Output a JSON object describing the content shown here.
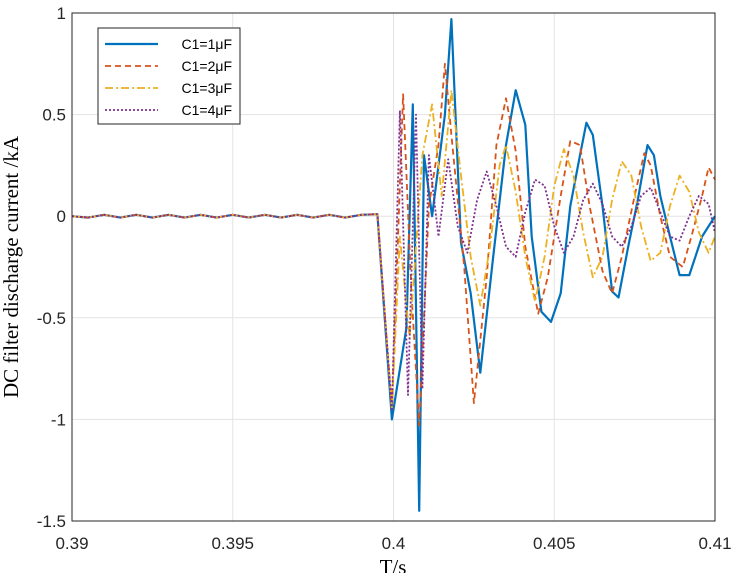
{
  "chart_data": {
    "type": "line",
    "xlabel": "T/s",
    "ylabel": "DC filter discharge current /kA",
    "xlim": [
      0.39,
      0.41
    ],
    "ylim": [
      -1.5,
      1
    ],
    "xticks": [
      "0.39",
      "0.395",
      "0.4",
      "0.405",
      "0.41"
    ],
    "xtick_values": [
      0.39,
      0.395,
      0.4,
      0.405,
      0.41
    ],
    "yticks": [
      "1",
      "0.5",
      "0",
      "-0.5",
      "-1",
      "-1.5"
    ],
    "ytick_values": [
      1,
      0.5,
      0,
      -0.5,
      -1,
      -1.5
    ],
    "grid": true,
    "legend_position": "top-left",
    "series": [
      {
        "name": "C1=1μF",
        "color": "#0072BD",
        "dash": "solid",
        "points": [
          [
            0.39,
            0.0
          ],
          [
            0.3905,
            -0.007
          ],
          [
            0.391,
            0.007
          ],
          [
            0.3915,
            -0.007
          ],
          [
            0.392,
            0.007
          ],
          [
            0.3925,
            -0.007
          ],
          [
            0.393,
            0.007
          ],
          [
            0.3935,
            -0.007
          ],
          [
            0.394,
            0.007
          ],
          [
            0.3945,
            -0.007
          ],
          [
            0.395,
            0.007
          ],
          [
            0.3955,
            -0.007
          ],
          [
            0.396,
            0.007
          ],
          [
            0.3965,
            -0.007
          ],
          [
            0.397,
            0.007
          ],
          [
            0.3975,
            -0.007
          ],
          [
            0.398,
            0.007
          ],
          [
            0.3985,
            -0.007
          ],
          [
            0.399,
            0.007
          ],
          [
            0.3995,
            0.01
          ],
          [
            0.39995,
            -1.0
          ],
          [
            0.4004,
            -0.55
          ],
          [
            0.4006,
            0.55
          ],
          [
            0.4008,
            -1.45
          ],
          [
            0.40095,
            0.3
          ],
          [
            0.4012,
            0.0
          ],
          [
            0.4016,
            0.5
          ],
          [
            0.4018,
            0.97
          ],
          [
            0.4021,
            -0.13
          ],
          [
            0.4024,
            -0.38
          ],
          [
            0.4027,
            -0.77
          ],
          [
            0.4031,
            -0.2
          ],
          [
            0.4035,
            0.35
          ],
          [
            0.4038,
            0.62
          ],
          [
            0.4041,
            0.45
          ],
          [
            0.4043,
            -0.1
          ],
          [
            0.4046,
            -0.47
          ],
          [
            0.4049,
            -0.52
          ],
          [
            0.4052,
            -0.38
          ],
          [
            0.4055,
            0.05
          ],
          [
            0.4058,
            0.3
          ],
          [
            0.406,
            0.46
          ],
          [
            0.4062,
            0.4
          ],
          [
            0.4065,
            0.05
          ],
          [
            0.4068,
            -0.37
          ],
          [
            0.407,
            -0.4
          ],
          [
            0.4073,
            -0.15
          ],
          [
            0.4076,
            0.08
          ],
          [
            0.4079,
            0.35
          ],
          [
            0.4081,
            0.3
          ],
          [
            0.4083,
            0.1
          ],
          [
            0.4086,
            -0.1
          ],
          [
            0.4089,
            -0.29
          ],
          [
            0.4092,
            -0.29
          ],
          [
            0.4096,
            -0.1
          ],
          [
            0.41,
            0.0
          ]
        ]
      },
      {
        "name": "C1=2μF",
        "color": "#D95319",
        "dash": "6,4",
        "points": [
          [
            0.39,
            0.0
          ],
          [
            0.3905,
            -0.007
          ],
          [
            0.391,
            0.007
          ],
          [
            0.3915,
            -0.007
          ],
          [
            0.392,
            0.007
          ],
          [
            0.3925,
            -0.007
          ],
          [
            0.393,
            0.007
          ],
          [
            0.3935,
            -0.007
          ],
          [
            0.394,
            0.007
          ],
          [
            0.3945,
            -0.007
          ],
          [
            0.395,
            0.007
          ],
          [
            0.3955,
            -0.007
          ],
          [
            0.396,
            0.007
          ],
          [
            0.3965,
            -0.007
          ],
          [
            0.397,
            0.007
          ],
          [
            0.3975,
            -0.007
          ],
          [
            0.398,
            0.007
          ],
          [
            0.3985,
            -0.007
          ],
          [
            0.399,
            0.007
          ],
          [
            0.3995,
            0.01
          ],
          [
            0.39995,
            -0.95
          ],
          [
            0.4003,
            0.6
          ],
          [
            0.40055,
            -0.35
          ],
          [
            0.4008,
            -1.03
          ],
          [
            0.4011,
            0.05
          ],
          [
            0.4014,
            0.35
          ],
          [
            0.4016,
            0.75
          ],
          [
            0.4018,
            0.4
          ],
          [
            0.4022,
            -0.25
          ],
          [
            0.4025,
            -0.92
          ],
          [
            0.4029,
            -0.3
          ],
          [
            0.4032,
            0.35
          ],
          [
            0.4035,
            0.58
          ],
          [
            0.4038,
            0.32
          ],
          [
            0.4041,
            -0.15
          ],
          [
            0.4045,
            -0.48
          ],
          [
            0.4048,
            -0.3
          ],
          [
            0.4052,
            0.1
          ],
          [
            0.4055,
            0.37
          ],
          [
            0.4058,
            0.35
          ],
          [
            0.4061,
            0.05
          ],
          [
            0.4065,
            -0.27
          ],
          [
            0.4068,
            -0.38
          ],
          [
            0.4071,
            -0.2
          ],
          [
            0.4075,
            0.1
          ],
          [
            0.4078,
            0.31
          ],
          [
            0.408,
            0.25
          ],
          [
            0.4083,
            0.0
          ],
          [
            0.4086,
            -0.2
          ],
          [
            0.409,
            -0.25
          ],
          [
            0.4093,
            -0.08
          ],
          [
            0.4096,
            0.1
          ],
          [
            0.4098,
            0.24
          ],
          [
            0.41,
            0.18
          ]
        ]
      },
      {
        "name": "C1=3μF",
        "color": "#EDB120",
        "dash": "8,3,2,3",
        "points": [
          [
            0.39,
            0.0
          ],
          [
            0.3905,
            -0.007
          ],
          [
            0.391,
            0.007
          ],
          [
            0.3915,
            -0.007
          ],
          [
            0.392,
            0.007
          ],
          [
            0.3925,
            -0.007
          ],
          [
            0.393,
            0.007
          ],
          [
            0.3935,
            -0.007
          ],
          [
            0.394,
            0.007
          ],
          [
            0.3945,
            -0.007
          ],
          [
            0.395,
            0.007
          ],
          [
            0.3955,
            -0.007
          ],
          [
            0.396,
            0.007
          ],
          [
            0.3965,
            -0.007
          ],
          [
            0.397,
            0.007
          ],
          [
            0.3975,
            -0.007
          ],
          [
            0.398,
            0.007
          ],
          [
            0.3985,
            -0.007
          ],
          [
            0.399,
            0.007
          ],
          [
            0.3995,
            0.01
          ],
          [
            0.39995,
            -0.95
          ],
          [
            0.4002,
            -0.1
          ],
          [
            0.4005,
            -0.6
          ],
          [
            0.4009,
            0.3
          ],
          [
            0.4012,
            0.55
          ],
          [
            0.4015,
            0.1
          ],
          [
            0.4018,
            0.62
          ],
          [
            0.4021,
            0.2
          ],
          [
            0.4024,
            -0.2
          ],
          [
            0.4027,
            -0.44
          ],
          [
            0.403,
            -0.15
          ],
          [
            0.4033,
            0.25
          ],
          [
            0.4035,
            0.35
          ],
          [
            0.4038,
            0.12
          ],
          [
            0.4041,
            -0.2
          ],
          [
            0.4044,
            -0.42
          ],
          [
            0.4047,
            -0.2
          ],
          [
            0.405,
            0.15
          ],
          [
            0.4053,
            0.33
          ],
          [
            0.4056,
            0.2
          ],
          [
            0.4059,
            -0.08
          ],
          [
            0.4062,
            -0.3
          ],
          [
            0.4065,
            -0.2
          ],
          [
            0.4068,
            0.08
          ],
          [
            0.4071,
            0.27
          ],
          [
            0.4074,
            0.2
          ],
          [
            0.4077,
            -0.05
          ],
          [
            0.408,
            -0.22
          ],
          [
            0.4083,
            -0.18
          ],
          [
            0.4086,
            0.05
          ],
          [
            0.4089,
            0.2
          ],
          [
            0.4092,
            0.12
          ],
          [
            0.4095,
            -0.08
          ],
          [
            0.4098,
            -0.18
          ],
          [
            0.41,
            -0.1
          ]
        ]
      },
      {
        "name": "C1=4μF",
        "color": "#7E2F8E",
        "dash": "2,2",
        "points": [
          [
            0.39,
            0.0
          ],
          [
            0.3905,
            -0.007
          ],
          [
            0.391,
            0.007
          ],
          [
            0.3915,
            -0.007
          ],
          [
            0.392,
            0.007
          ],
          [
            0.3925,
            -0.007
          ],
          [
            0.393,
            0.007
          ],
          [
            0.3935,
            -0.007
          ],
          [
            0.394,
            0.007
          ],
          [
            0.3945,
            -0.007
          ],
          [
            0.395,
            0.007
          ],
          [
            0.3955,
            -0.007
          ],
          [
            0.396,
            0.007
          ],
          [
            0.3965,
            -0.007
          ],
          [
            0.397,
            0.007
          ],
          [
            0.3975,
            -0.007
          ],
          [
            0.398,
            0.007
          ],
          [
            0.3985,
            -0.007
          ],
          [
            0.399,
            0.007
          ],
          [
            0.3995,
            0.01
          ],
          [
            0.39995,
            -0.95
          ],
          [
            0.4002,
            0.52
          ],
          [
            0.40045,
            -0.88
          ],
          [
            0.4007,
            0.5
          ],
          [
            0.4009,
            -0.85
          ],
          [
            0.4011,
            0.3
          ],
          [
            0.4014,
            -0.1
          ],
          [
            0.4017,
            0.28
          ],
          [
            0.402,
            -0.05
          ],
          [
            0.4023,
            -0.18
          ],
          [
            0.4026,
            0.08
          ],
          [
            0.4029,
            0.22
          ],
          [
            0.4032,
            0.05
          ],
          [
            0.4035,
            -0.15
          ],
          [
            0.4038,
            -0.2
          ],
          [
            0.4041,
            0.02
          ],
          [
            0.4044,
            0.18
          ],
          [
            0.4047,
            0.15
          ],
          [
            0.405,
            -0.05
          ],
          [
            0.4053,
            -0.18
          ],
          [
            0.4056,
            -0.1
          ],
          [
            0.4059,
            0.08
          ],
          [
            0.4062,
            0.16
          ],
          [
            0.4065,
            0.06
          ],
          [
            0.4068,
            -0.1
          ],
          [
            0.4071,
            -0.15
          ],
          [
            0.4074,
            -0.05
          ],
          [
            0.4077,
            0.1
          ],
          [
            0.408,
            0.14
          ],
          [
            0.4083,
            0.02
          ],
          [
            0.4086,
            -0.1
          ],
          [
            0.4089,
            -0.12
          ],
          [
            0.4092,
            0.0
          ],
          [
            0.4095,
            0.1
          ],
          [
            0.4098,
            0.06
          ],
          [
            0.41,
            -0.08
          ]
        ]
      }
    ]
  }
}
